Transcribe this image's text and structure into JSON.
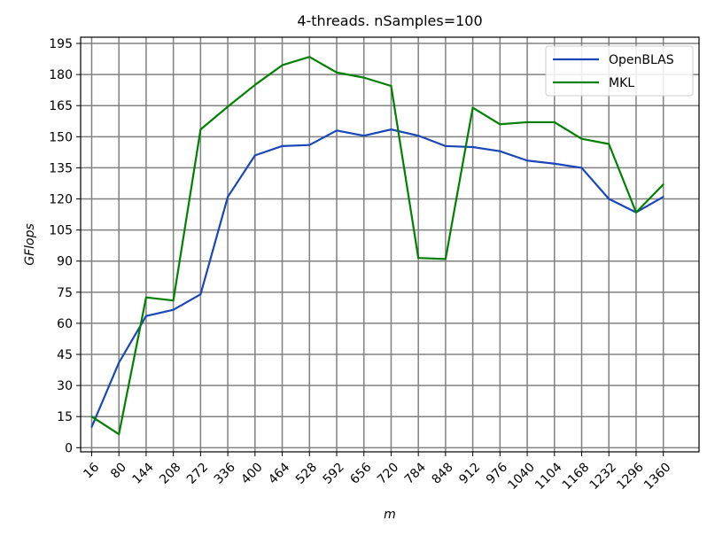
{
  "chart_data": {
    "type": "line",
    "title": "4-threads. nSamples=100",
    "xlabel": "m",
    "ylabel": "GFlops",
    "x": [
      16,
      80,
      144,
      208,
      272,
      336,
      400,
      464,
      528,
      592,
      656,
      720,
      784,
      848,
      912,
      976,
      1040,
      1104,
      1168,
      1232,
      1296,
      1360
    ],
    "x_tick_labels": [
      "16",
      "80",
      "144",
      "208",
      "272",
      "336",
      "400",
      "464",
      "528",
      "592",
      "656",
      "720",
      "784",
      "848",
      "912",
      "976",
      "1040",
      "1104",
      "1168",
      "1232",
      "1296",
      "1360"
    ],
    "y_ticks": [
      0,
      15,
      30,
      45,
      60,
      75,
      90,
      105,
      120,
      135,
      150,
      165,
      180,
      195
    ],
    "y_tick_labels": [
      "0",
      "15",
      "30",
      "45",
      "60",
      "75",
      "90",
      "105",
      "120",
      "135",
      "150",
      "165",
      "180",
      "195"
    ],
    "ylim": [
      -2,
      198
    ],
    "grid": true,
    "legend_position": "top-right",
    "series": [
      {
        "name": "OpenBLAS",
        "color": "#1a47b8",
        "values": [
          10,
          41,
          63.5,
          66.5,
          74,
          121,
          141,
          145.5,
          146,
          153,
          150.5,
          153.5,
          150.5,
          145.5,
          145,
          143,
          138.5,
          137,
          135,
          120,
          113.5,
          121
        ]
      },
      {
        "name": "MKL",
        "color": "#008000",
        "values": [
          15,
          6.5,
          72.5,
          71,
          153.5,
          164.5,
          175,
          184.5,
          188.5,
          181,
          178.5,
          174.5,
          91.5,
          91,
          164,
          156,
          157,
          157,
          149,
          146.5,
          113.5,
          127
        ]
      }
    ]
  }
}
